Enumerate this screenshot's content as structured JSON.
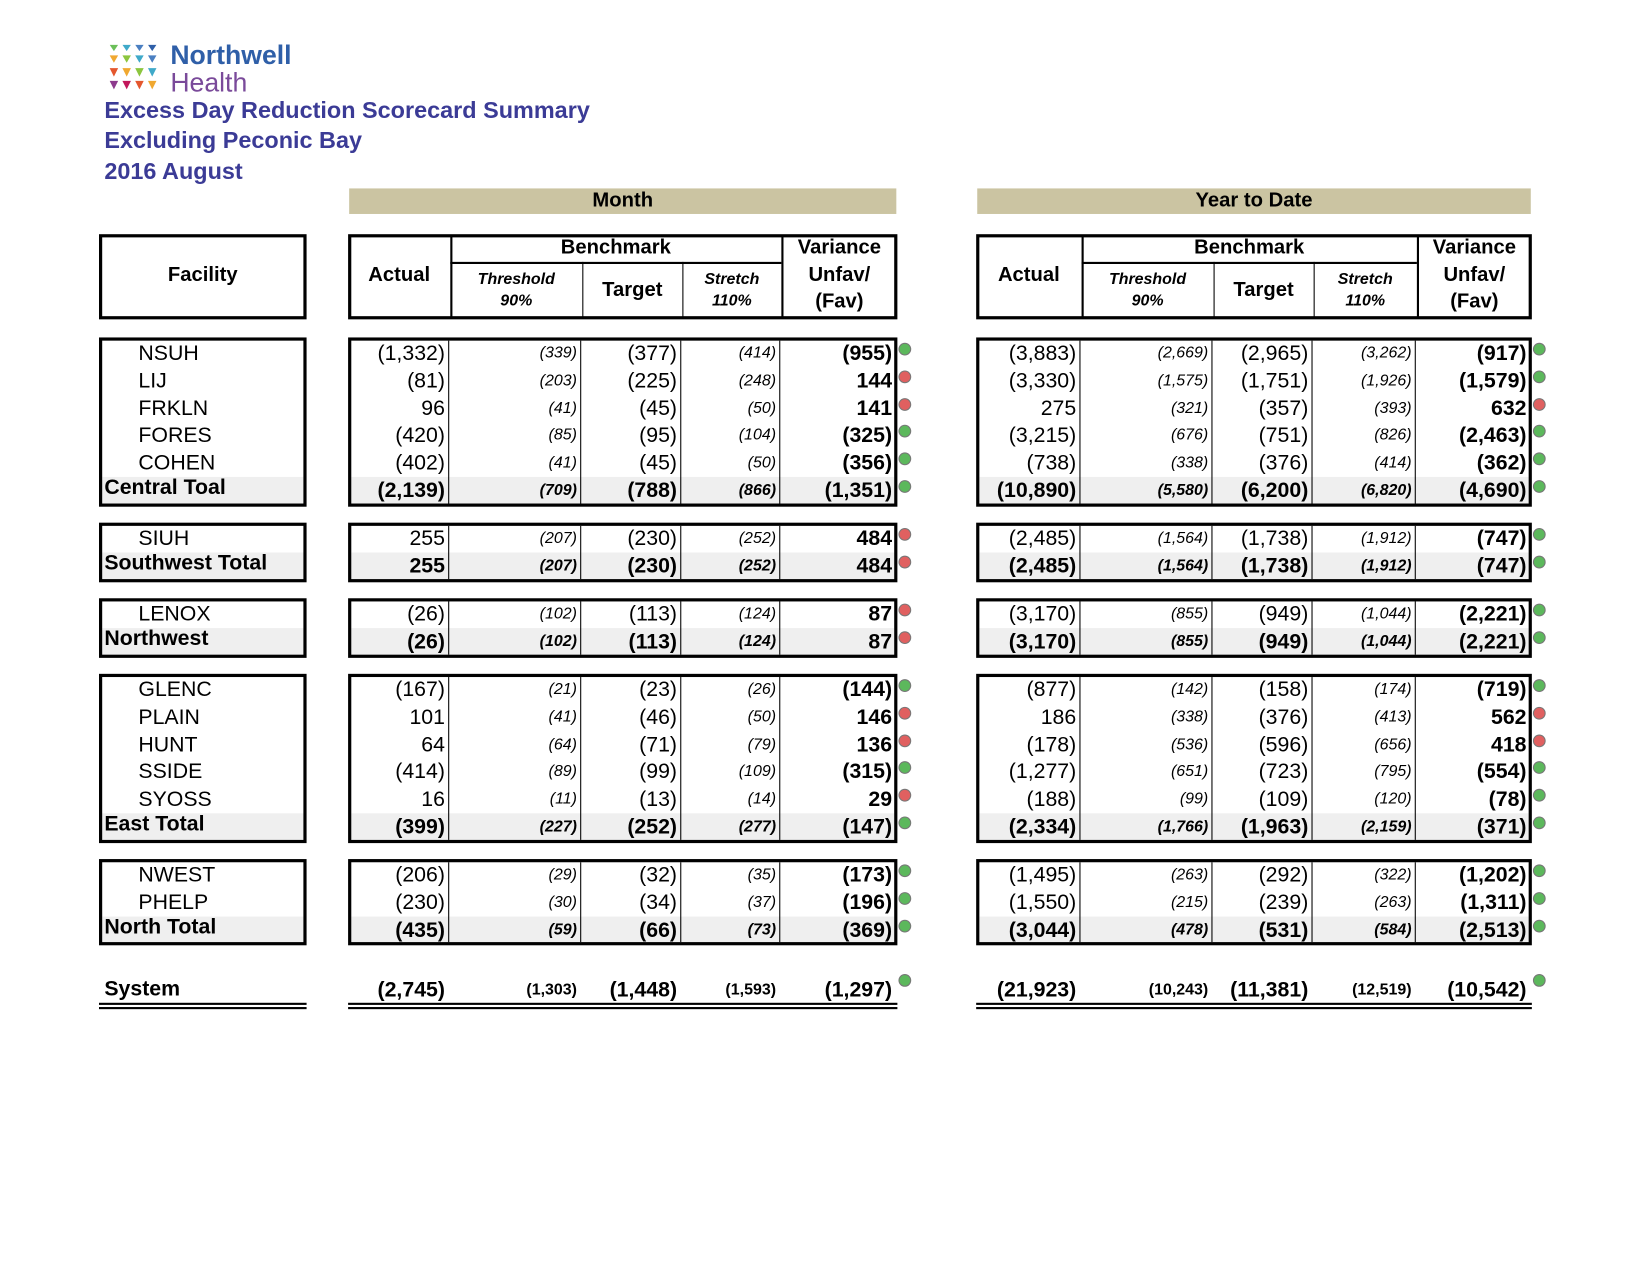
{
  "header": {
    "logo": [
      "Northwell",
      "Health"
    ],
    "titles": [
      "Excess Day Reduction Scorecard Summary",
      "Excluding Peconic Bay",
      "2016 August"
    ]
  },
  "sections": [
    "Month",
    "Year to Date"
  ],
  "columns": {
    "facility": "Facility",
    "actual": "Actual",
    "benchmark": "Benchmark",
    "threshold": [
      "Threshold",
      "90%"
    ],
    "target": "Target",
    "stretch": [
      "Stretch",
      "110%"
    ],
    "variance": [
      "Variance",
      "Unfav/",
      "(Fav)"
    ]
  },
  "groups": [
    {
      "rows": [
        {
          "facility": "NSUH",
          "total": false,
          "month": [
            "(1,332)",
            "(339)",
            "(377)",
            "(414)",
            "(955)"
          ],
          "month_color": "#5cb85c",
          "ytd": [
            "(3,883)",
            "(2,669)",
            "(2,965)",
            "(3,262)",
            "(917)"
          ],
          "ytd_color": "#5cb85c"
        },
        {
          "facility": "LIJ",
          "total": false,
          "month": [
            "(81)",
            "(203)",
            "(225)",
            "(248)",
            "144"
          ],
          "month_color": "#e06060",
          "ytd": [
            "(3,330)",
            "(1,575)",
            "(1,751)",
            "(1,926)",
            "(1,579)"
          ],
          "ytd_color": "#5cb85c"
        },
        {
          "facility": "FRKLN",
          "total": false,
          "month": [
            "96",
            "(41)",
            "(45)",
            "(50)",
            "141"
          ],
          "month_color": "#e06060",
          "ytd": [
            "275",
            "(321)",
            "(357)",
            "(393)",
            "632"
          ],
          "ytd_color": "#e06060"
        },
        {
          "facility": "FORES",
          "total": false,
          "month": [
            "(420)",
            "(85)",
            "(95)",
            "(104)",
            "(325)"
          ],
          "month_color": "#5cb85c",
          "ytd": [
            "(3,215)",
            "(676)",
            "(751)",
            "(826)",
            "(2,463)"
          ],
          "ytd_color": "#5cb85c"
        },
        {
          "facility": "COHEN",
          "total": false,
          "month": [
            "(402)",
            "(41)",
            "(45)",
            "(50)",
            "(356)"
          ],
          "month_color": "#5cb85c",
          "ytd": [
            "(738)",
            "(338)",
            "(376)",
            "(414)",
            "(362)"
          ],
          "ytd_color": "#5cb85c"
        },
        {
          "facility": "Central Toal",
          "total": true,
          "month": [
            "(2,139)",
            "(709)",
            "(788)",
            "(866)",
            "(1,351)"
          ],
          "month_color": "#5cb85c",
          "ytd": [
            "(10,890)",
            "(5,580)",
            "(6,200)",
            "(6,820)",
            "(4,690)"
          ],
          "ytd_color": "#5cb85c"
        }
      ]
    },
    {
      "rows": [
        {
          "facility": "SIUH",
          "total": false,
          "month": [
            "255",
            "(207)",
            "(230)",
            "(252)",
            "484"
          ],
          "month_color": "#e06060",
          "ytd": [
            "(2,485)",
            "(1,564)",
            "(1,738)",
            "(1,912)",
            "(747)"
          ],
          "ytd_color": "#5cb85c"
        },
        {
          "facility": "Southwest Total",
          "total": true,
          "month": [
            "255",
            "(207)",
            "(230)",
            "(252)",
            "484"
          ],
          "month_color": "#e06060",
          "ytd": [
            "(2,485)",
            "(1,564)",
            "(1,738)",
            "(1,912)",
            "(747)"
          ],
          "ytd_color": "#5cb85c"
        }
      ]
    },
    {
      "rows": [
        {
          "facility": "LENOX",
          "total": false,
          "month": [
            "(26)",
            "(102)",
            "(113)",
            "(124)",
            "87"
          ],
          "month_color": "#e06060",
          "ytd": [
            "(3,170)",
            "(855)",
            "(949)",
            "(1,044)",
            "(2,221)"
          ],
          "ytd_color": "#5cb85c"
        },
        {
          "facility": "Northwest",
          "total": true,
          "month": [
            "(26)",
            "(102)",
            "(113)",
            "(124)",
            "87"
          ],
          "month_color": "#e06060",
          "ytd": [
            "(3,170)",
            "(855)",
            "(949)",
            "(1,044)",
            "(2,221)"
          ],
          "ytd_color": "#5cb85c"
        }
      ]
    },
    {
      "rows": [
        {
          "facility": "GLENC",
          "total": false,
          "month": [
            "(167)",
            "(21)",
            "(23)",
            "(26)",
            "(144)"
          ],
          "month_color": "#5cb85c",
          "ytd": [
            "(877)",
            "(142)",
            "(158)",
            "(174)",
            "(719)"
          ],
          "ytd_color": "#5cb85c"
        },
        {
          "facility": "PLAIN",
          "total": false,
          "month": [
            "101",
            "(41)",
            "(46)",
            "(50)",
            "146"
          ],
          "month_color": "#e06060",
          "ytd": [
            "186",
            "(338)",
            "(376)",
            "(413)",
            "562"
          ],
          "ytd_color": "#e06060"
        },
        {
          "facility": "HUNT",
          "total": false,
          "month": [
            "64",
            "(64)",
            "(71)",
            "(79)",
            "136"
          ],
          "month_color": "#e06060",
          "ytd": [
            "(178)",
            "(536)",
            "(596)",
            "(656)",
            "418"
          ],
          "ytd_color": "#e06060"
        },
        {
          "facility": "SSIDE",
          "total": false,
          "month": [
            "(414)",
            "(89)",
            "(99)",
            "(109)",
            "(315)"
          ],
          "month_color": "#5cb85c",
          "ytd": [
            "(1,277)",
            "(651)",
            "(723)",
            "(795)",
            "(554)"
          ],
          "ytd_color": "#5cb85c"
        },
        {
          "facility": "SYOSS",
          "total": false,
          "month": [
            "16",
            "(11)",
            "(13)",
            "(14)",
            "29"
          ],
          "month_color": "#e06060",
          "ytd": [
            "(188)",
            "(99)",
            "(109)",
            "(120)",
            "(78)"
          ],
          "ytd_color": "#5cb85c"
        },
        {
          "facility": "East Total",
          "total": true,
          "month": [
            "(399)",
            "(227)",
            "(252)",
            "(277)",
            "(147)"
          ],
          "month_color": "#5cb85c",
          "ytd": [
            "(2,334)",
            "(1,766)",
            "(1,963)",
            "(2,159)",
            "(371)"
          ],
          "ytd_color": "#5cb85c"
        }
      ]
    },
    {
      "rows": [
        {
          "facility": "NWEST",
          "total": false,
          "month": [
            "(206)",
            "(29)",
            "(32)",
            "(35)",
            "(173)"
          ],
          "month_color": "#5cb85c",
          "ytd": [
            "(1,495)",
            "(263)",
            "(292)",
            "(322)",
            "(1,202)"
          ],
          "ytd_color": "#5cb85c"
        },
        {
          "facility": "PHELP",
          "total": false,
          "month": [
            "(230)",
            "(30)",
            "(34)",
            "(37)",
            "(196)"
          ],
          "month_color": "#5cb85c",
          "ytd": [
            "(1,550)",
            "(215)",
            "(239)",
            "(263)",
            "(1,311)"
          ],
          "ytd_color": "#5cb85c"
        },
        {
          "facility": "North Total",
          "total": true,
          "month": [
            "(435)",
            "(59)",
            "(66)",
            "(73)",
            "(369)"
          ],
          "month_color": "#5cb85c",
          "ytd": [
            "(3,044)",
            "(478)",
            "(531)",
            "(584)",
            "(2,513)"
          ],
          "ytd_color": "#5cb85c"
        }
      ]
    }
  ],
  "system": {
    "facility": "System",
    "month": [
      "(2,745)",
      "(1,303)",
      "(1,448)",
      "(1,593)",
      "(1,297)"
    ],
    "month_color": "#5cb85c",
    "ytd": [
      "(21,923)",
      "(10,243)",
      "(11,381)",
      "(12,519)",
      "(10,542)"
    ],
    "ytd_color": "#5cb85c"
  }
}
